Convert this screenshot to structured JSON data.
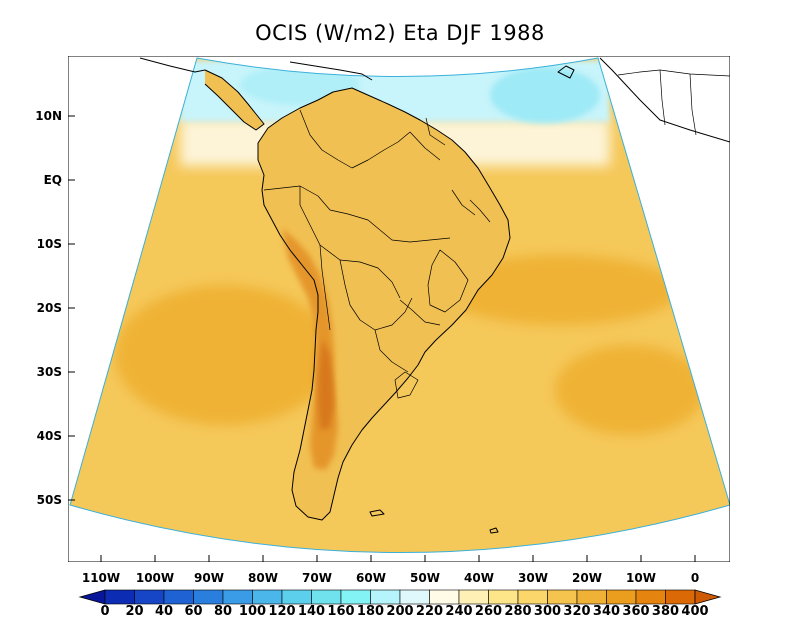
{
  "title": "OCIS (W/m2) Eta DJF 1988",
  "y_axis": {
    "labels": [
      "10N",
      "EQ",
      "10S",
      "20S",
      "30S",
      "40S",
      "50S"
    ],
    "values": [
      10,
      0,
      -10,
      -20,
      -30,
      -40,
      -50
    ]
  },
  "x_axis": {
    "labels": [
      "110W",
      "100W",
      "90W",
      "80W",
      "70W",
      "60W",
      "50W",
      "40W",
      "30W",
      "20W",
      "10W",
      "0"
    ],
    "values": [
      -110,
      -100,
      -90,
      -80,
      -70,
      -60,
      -50,
      -40,
      -30,
      -20,
      -10,
      0
    ]
  },
  "colorbar": {
    "levels": [
      "0",
      "20",
      "40",
      "60",
      "80",
      "100",
      "120",
      "140",
      "160",
      "180",
      "200",
      "220",
      "240",
      "260",
      "280",
      "300",
      "320",
      "340",
      "360",
      "380",
      "400"
    ],
    "colors": [
      "#08169a",
      "#0d2cb4",
      "#1646c6",
      "#1f62d4",
      "#2a7fde",
      "#3a9be6",
      "#4ab6ea",
      "#5ccfec",
      "#6fe2ee",
      "#84f3f6",
      "#b4f4fa",
      "#dff8fb",
      "#fffbe6",
      "#fff0b5",
      "#fde58a",
      "#fad66b",
      "#f5c44f",
      "#f0b236",
      "#eb9e1e",
      "#e5840e",
      "#db6a06",
      "#cf5a04"
    ],
    "under_color": "#08169a",
    "over_color": "#cf5a04"
  },
  "map_colors": {
    "ocean_base": "#f5c85a",
    "land_base": "#f1c052",
    "tropical_cloud": "#c8f4fb",
    "ocean_warm": "#efb235",
    "andes": "#e5962a",
    "andes_peak": "#d7781f",
    "near_zero": "#fdf4d8"
  }
}
